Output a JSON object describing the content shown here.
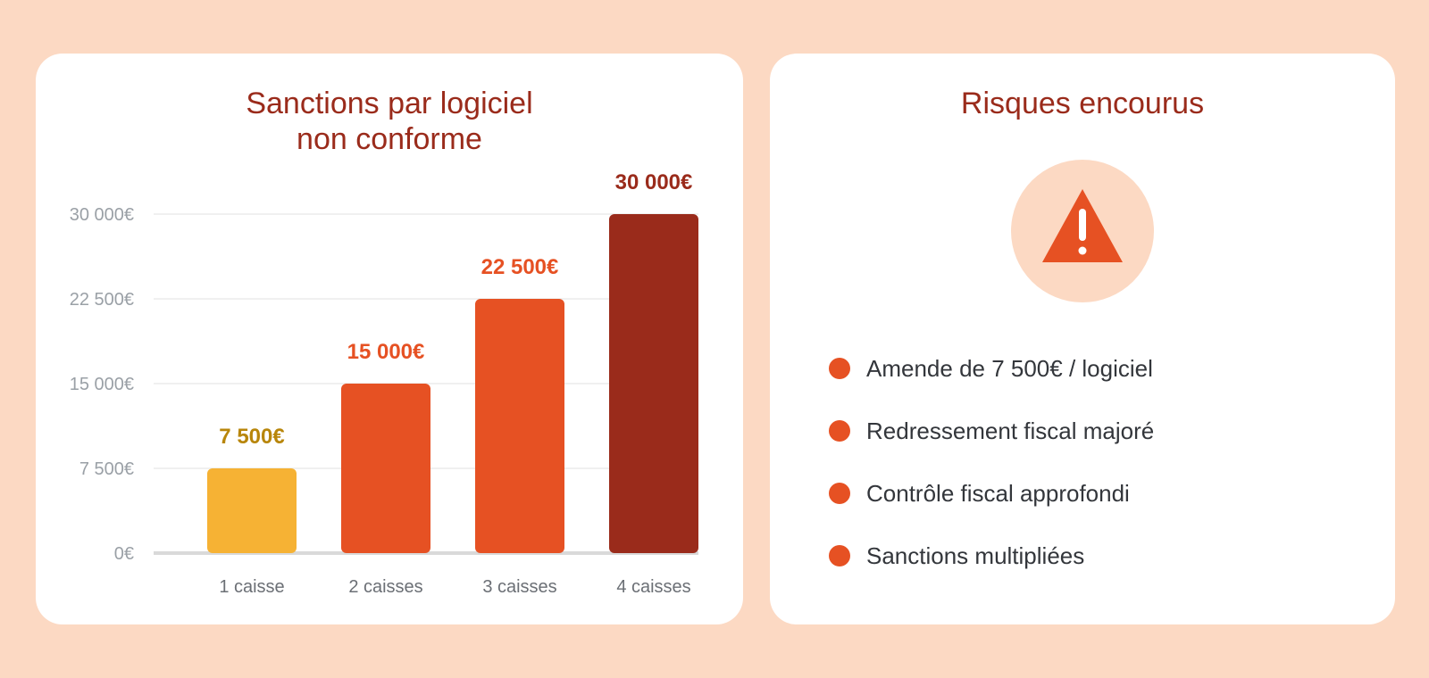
{
  "colors": {
    "background": "#fcd9c3",
    "title": "#9a2b1b",
    "accent": "#e65123",
    "bar_1": "#f6b234",
    "bar_2": "#e65123",
    "bar_3": "#e65123",
    "bar_4": "#9a2b1b",
    "label_1": "#b8860b",
    "label_2": "#e65123",
    "label_3": "#e65123",
    "label_4": "#9a2b1b"
  },
  "chart_data": {
    "type": "bar",
    "title_lines": [
      "Sanctions par logiciel",
      "non conforme"
    ],
    "categories": [
      "1 caisse",
      "2 caisses",
      "3 caisses",
      "4 caisses"
    ],
    "values": [
      7500,
      15000,
      22500,
      30000
    ],
    "value_labels": [
      "7 500€",
      "15 000€",
      "22 500€",
      "30 000€"
    ],
    "yticks": [
      0,
      7500,
      15000,
      22500,
      30000
    ],
    "ytick_labels": [
      "0€",
      "7 500€",
      "15 000€",
      "22 500€",
      "30 000€"
    ],
    "ylim": [
      0,
      30000
    ],
    "grid": true,
    "xlabel": "",
    "ylabel": ""
  },
  "risks": {
    "title": "Risques encourus",
    "icon": "warning-triangle-icon",
    "items": [
      "Amende de 7 500€ / logiciel",
      "Redressement fiscal majoré",
      "Contrôle fiscal approfondi",
      "Sanctions multipliées"
    ]
  }
}
